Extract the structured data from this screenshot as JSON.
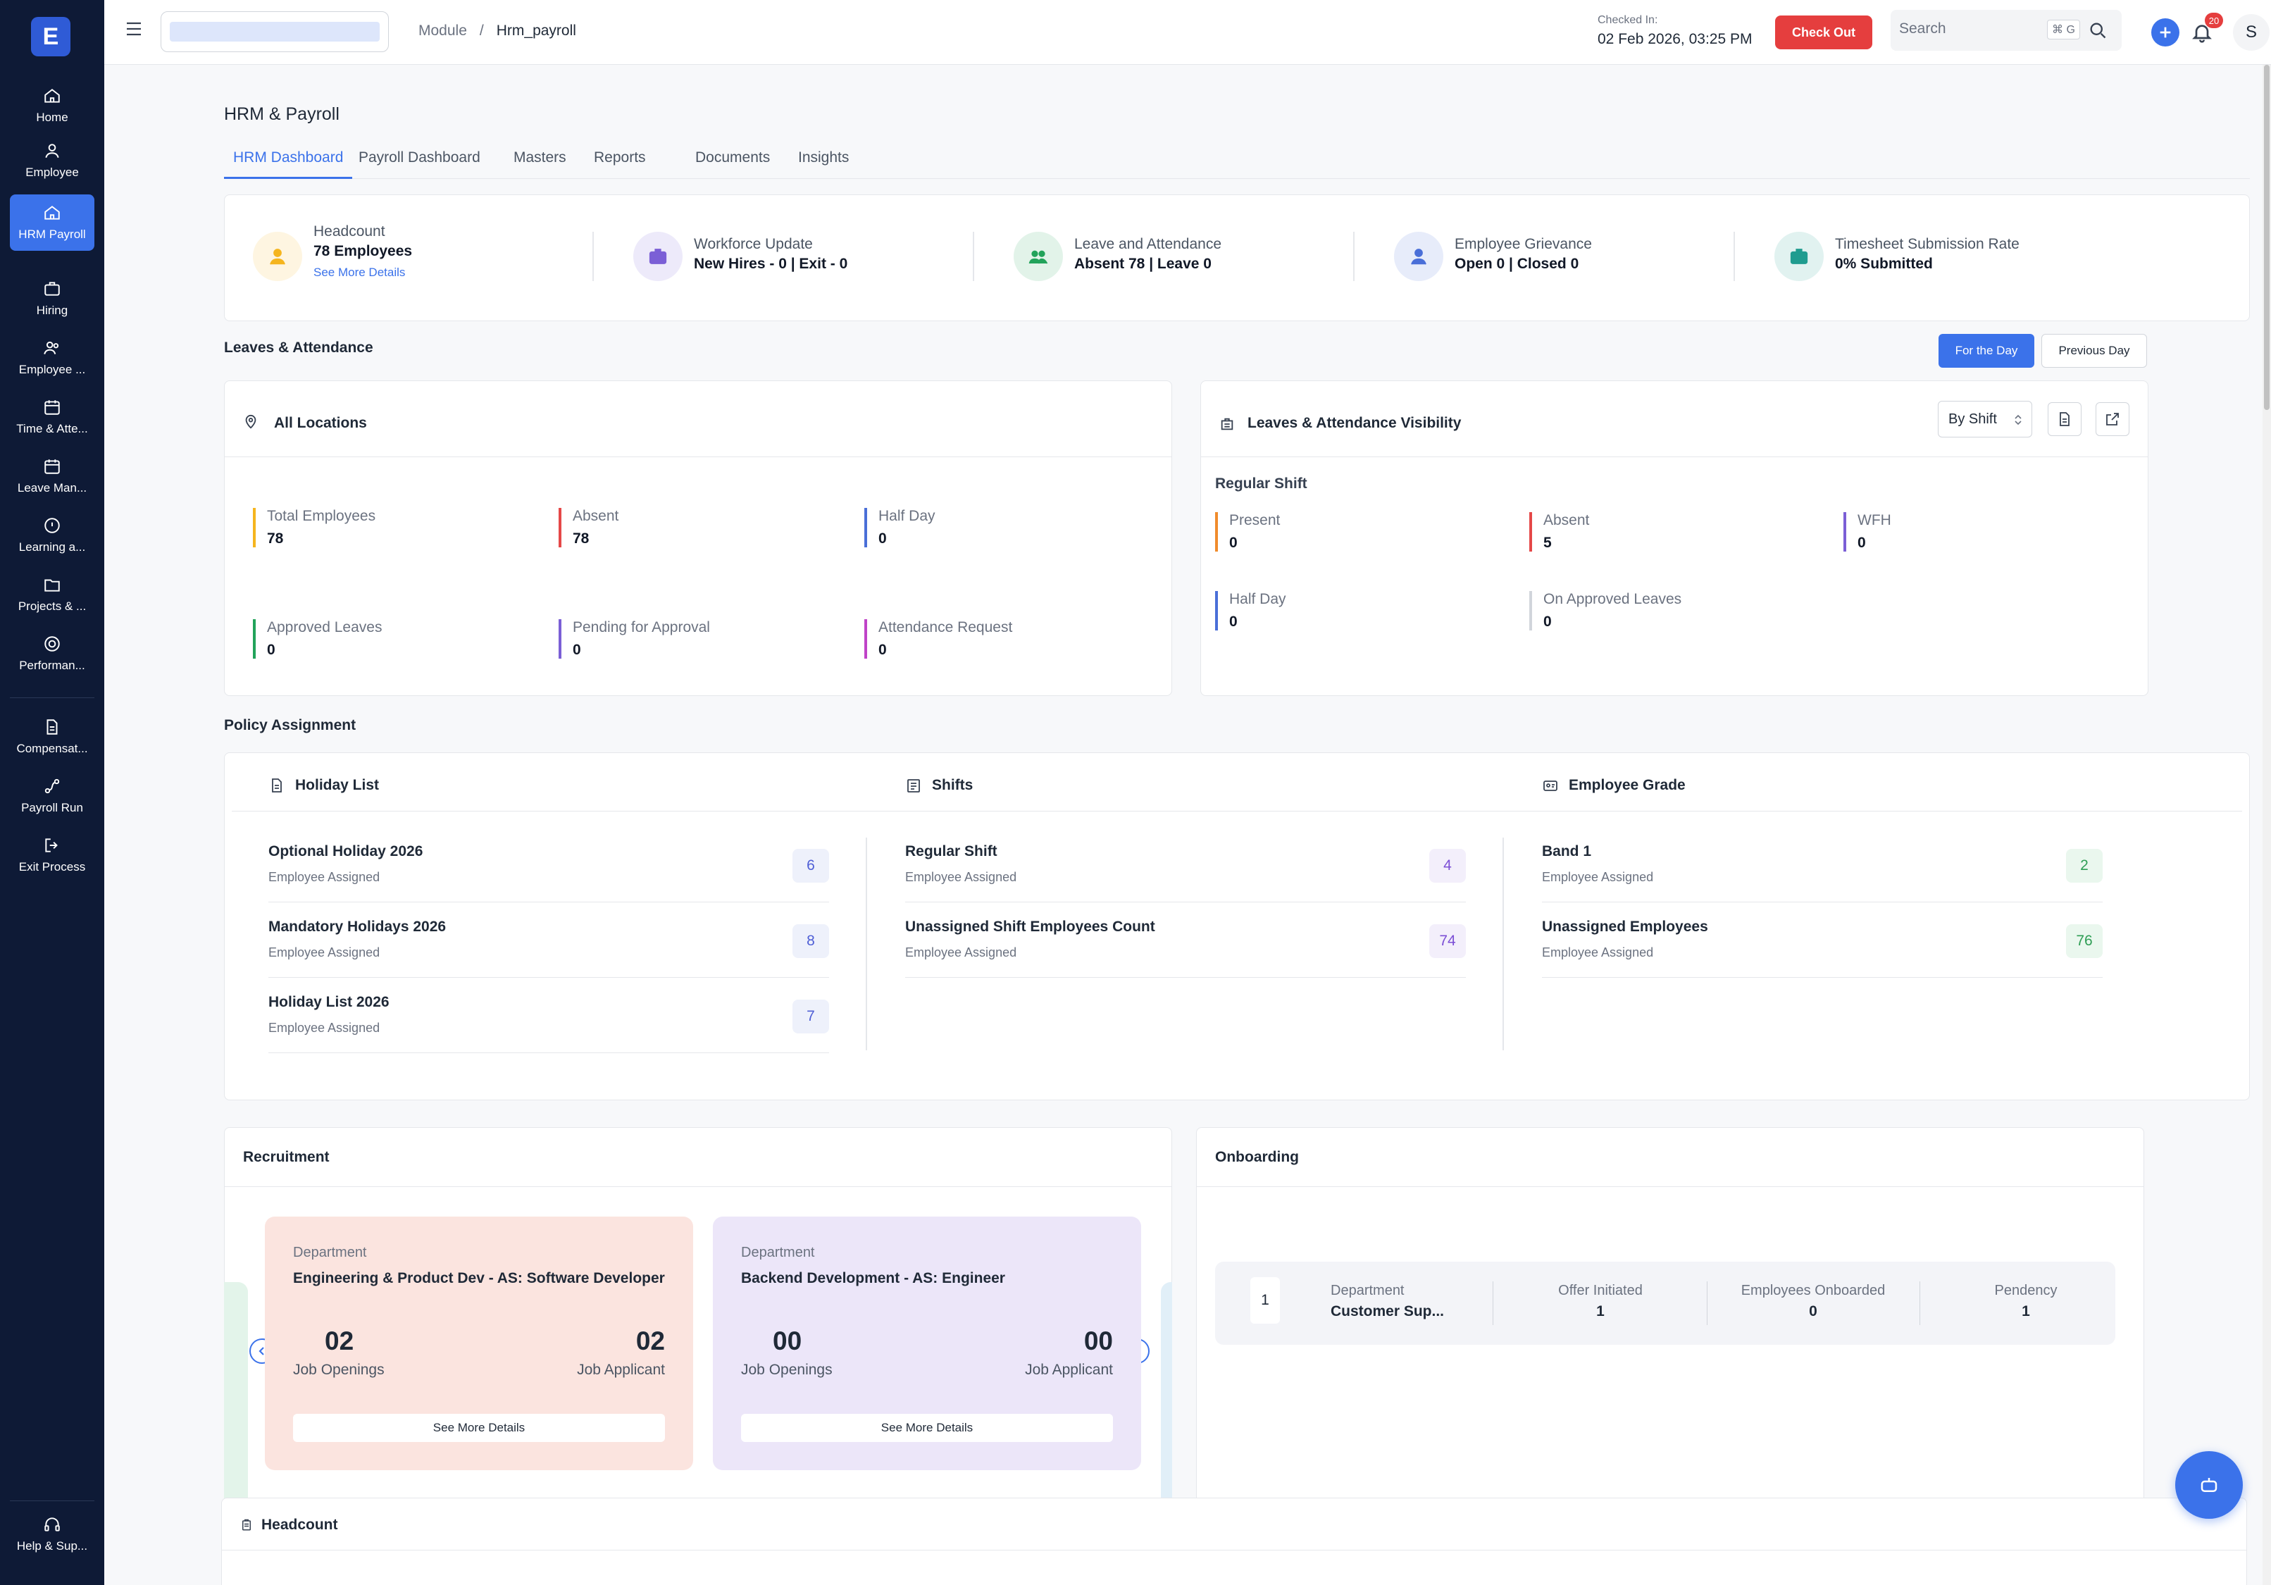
{
  "sidebar": {
    "logo": "E",
    "items": [
      {
        "label": "Home",
        "icon": "home-icon"
      },
      {
        "label": "Employee",
        "icon": "user-icon"
      },
      {
        "label": "HRM Payroll",
        "icon": "home-icon",
        "active": true
      },
      {
        "label": "Hiring",
        "icon": "briefcase-icon"
      },
      {
        "label": "Employee ...",
        "icon": "users-icon"
      },
      {
        "label": "Time & Atte...",
        "icon": "calendar-icon"
      },
      {
        "label": "Leave Man...",
        "icon": "calendar-icon"
      },
      {
        "label": "Learning a...",
        "icon": "circle-icon"
      },
      {
        "label": "Projects & ...",
        "icon": "folder-icon"
      },
      {
        "label": "Performan...",
        "icon": "target-icon"
      },
      {
        "label": "Compensat...",
        "icon": "document-icon"
      },
      {
        "label": "Payroll Run",
        "icon": "route-icon"
      },
      {
        "label": "Exit Process",
        "icon": "logout-icon"
      }
    ],
    "help": {
      "label": "Help & Sup...",
      "icon": "headset-icon"
    }
  },
  "topbar": {
    "breadcrumb": {
      "root": "Module",
      "separator": "/",
      "current": "Hrm_payroll"
    },
    "checked_in_label": "Checked In:",
    "checked_in_value": "02 Feb 2026, 03:25 PM",
    "check_out_label": "Check Out",
    "search_placeholder": "Search",
    "search_shortcut": "⌘ G",
    "notification_count": "20",
    "avatar_initial": "S"
  },
  "page": {
    "title": "HRM & Payroll",
    "tabs": [
      "HRM Dashboard",
      "Payroll Dashboard",
      "Masters",
      "Reports",
      "Documents",
      "Insights"
    ],
    "active_tab": "HRM Dashboard"
  },
  "summary": [
    {
      "label": "Headcount",
      "value": "78 Employees",
      "link": "See More Details",
      "color": "#f5b51e"
    },
    {
      "label": "Workforce Update",
      "value": "New Hires - 0 | Exit - 0",
      "color": "#7b5fd6"
    },
    {
      "label": "Leave and Attendance",
      "value": "Absent 78 | Leave 0",
      "color": "#22a35a"
    },
    {
      "label": "Employee Grievance",
      "value": "Open 0 | Closed 0",
      "color": "#4a6fd8"
    },
    {
      "label": "Timesheet Submission Rate",
      "value": "0% Submitted",
      "color": "#1f9c8f"
    }
  ],
  "leaves": {
    "section_title": "Leaves & Attendance",
    "btn_day": "For the Day",
    "btn_prev": "Previous Day",
    "locations": {
      "title": "All Locations",
      "metrics": [
        {
          "label": "Total Employees",
          "value": "78",
          "color": "#f5b51e"
        },
        {
          "label": "Absent",
          "value": "78",
          "color": "#e54848"
        },
        {
          "label": "Half Day",
          "value": "0",
          "color": "#4a6fd8"
        },
        {
          "label": "Approved Leaves",
          "value": "0",
          "color": "#22a35a"
        },
        {
          "label": "Pending for Approval",
          "value": "0",
          "color": "#7b5fd6"
        },
        {
          "label": "Attendance Request",
          "value": "0",
          "color": "#c043c8"
        }
      ]
    },
    "visibility": {
      "title": "Leaves & Attendance Visibility",
      "select_value": "By Shift",
      "shift_name": "Regular Shift",
      "metrics": [
        {
          "label": "Present",
          "value": "0",
          "color": "#f08c2c"
        },
        {
          "label": "Absent",
          "value": "5",
          "color": "#e54848"
        },
        {
          "label": "WFH",
          "value": "0",
          "color": "#7b5fd6"
        },
        {
          "label": "Half Day",
          "value": "0",
          "color": "#4a6fd8"
        },
        {
          "label": "On Approved Leaves",
          "value": "0",
          "color": "#d1d5db"
        }
      ]
    }
  },
  "policy": {
    "section_title": "Policy Assignment",
    "columns": [
      {
        "title": "Holiday List",
        "items": [
          {
            "name": "Optional Holiday 2026",
            "sub": "Employee Assigned",
            "count": "6"
          },
          {
            "name": "Mandatory Holidays 2026",
            "sub": "Employee Assigned",
            "count": "8"
          },
          {
            "name": "Holiday List 2026",
            "sub": "Employee Assigned",
            "count": "7"
          }
        ]
      },
      {
        "title": "Shifts",
        "items": [
          {
            "name": "Regular Shift",
            "sub": "Employee Assigned",
            "count": "4"
          },
          {
            "name": "Unassigned Shift Employees Count",
            "sub": "Employee Assigned",
            "count": "74"
          }
        ]
      },
      {
        "title": "Employee Grade",
        "items": [
          {
            "name": "Band 1",
            "sub": "Employee Assigned",
            "count": "2"
          },
          {
            "name": "Unassigned Employees",
            "sub": "Employee Assigned",
            "count": "76"
          }
        ]
      }
    ]
  },
  "recruitment": {
    "title": "Recruitment",
    "cards": [
      {
        "dept_label": "Department",
        "dept": "Engineering & Product Dev - AS: Software Developer",
        "openings": "02",
        "openings_label": "Job Openings",
        "applicants": "02",
        "applicants_label": "Job Applicant",
        "button": "See More Details",
        "bg": "#fbe4df"
      },
      {
        "dept_label": "Department",
        "dept": "Backend Development - AS: Engineer",
        "openings": "00",
        "openings_label": "Job Openings",
        "applicants": "00",
        "applicants_label": "Job Applicant",
        "button": "See More Details",
        "bg": "#ece6f9"
      }
    ]
  },
  "onboarding": {
    "title": "Onboarding",
    "row": {
      "index": "1",
      "dept_label": "Department",
      "dept": "Customer Sup...",
      "offer_label": "Offer Initiated",
      "offer": "1",
      "onboarded_label": "Employees Onboarded",
      "onboarded": "0",
      "pendency_label": "Pendency",
      "pendency": "1"
    }
  },
  "headcount": {
    "title": "Headcount"
  }
}
